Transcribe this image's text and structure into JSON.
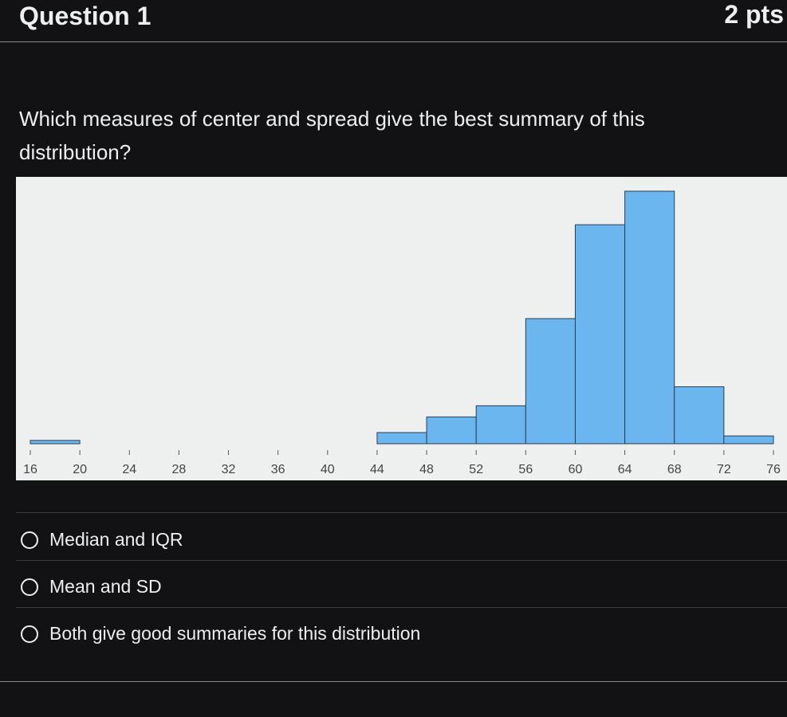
{
  "header": {
    "title": "Question 1",
    "points": "2 pts"
  },
  "question": {
    "text": "Which measures of center and spread give the best summary of this distribution?"
  },
  "chart_data": {
    "type": "histogram",
    "bins": [
      16,
      20,
      24,
      28,
      32,
      36,
      40,
      44,
      48,
      52,
      56,
      60,
      64,
      68,
      72,
      76
    ],
    "values": [
      0.3,
      0,
      0,
      0,
      0,
      0,
      0,
      1,
      2.4,
      3.4,
      11.2,
      19.6,
      22.6,
      5.1,
      0.7
    ],
    "color": "#6cb6f0",
    "xlim": [
      16,
      76
    ],
    "xticks": [
      16,
      20,
      24,
      28,
      32,
      36,
      40,
      44,
      48,
      52,
      56,
      60,
      64,
      68,
      72,
      76
    ]
  },
  "answers": [
    "Median and IQR",
    "Mean and SD",
    "Both give good summaries for this distribution"
  ]
}
